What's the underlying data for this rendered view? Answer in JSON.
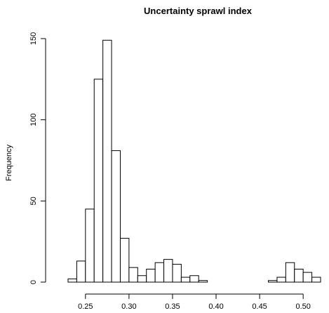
{
  "chart_data": {
    "type": "bar",
    "title": "Uncertainty sprawl index",
    "xlabel": "",
    "ylabel": "Frequency",
    "bin_width": 0.01,
    "bins": [
      {
        "start": 0.23,
        "end": 0.24,
        "value": 2
      },
      {
        "start": 0.24,
        "end": 0.25,
        "value": 13
      },
      {
        "start": 0.25,
        "end": 0.26,
        "value": 45
      },
      {
        "start": 0.26,
        "end": 0.27,
        "value": 125
      },
      {
        "start": 0.27,
        "end": 0.28,
        "value": 149
      },
      {
        "start": 0.28,
        "end": 0.29,
        "value": 81
      },
      {
        "start": 0.29,
        "end": 0.3,
        "value": 27
      },
      {
        "start": 0.3,
        "end": 0.31,
        "value": 9
      },
      {
        "start": 0.31,
        "end": 0.32,
        "value": 4
      },
      {
        "start": 0.32,
        "end": 0.33,
        "value": 8
      },
      {
        "start": 0.33,
        "end": 0.34,
        "value": 12
      },
      {
        "start": 0.34,
        "end": 0.35,
        "value": 14
      },
      {
        "start": 0.35,
        "end": 0.36,
        "value": 11
      },
      {
        "start": 0.36,
        "end": 0.37,
        "value": 3
      },
      {
        "start": 0.37,
        "end": 0.38,
        "value": 4
      },
      {
        "start": 0.38,
        "end": 0.39,
        "value": 1
      },
      {
        "start": 0.46,
        "end": 0.47,
        "value": 1
      },
      {
        "start": 0.47,
        "end": 0.48,
        "value": 3
      },
      {
        "start": 0.48,
        "end": 0.49,
        "value": 12
      },
      {
        "start": 0.49,
        "end": 0.5,
        "value": 8
      },
      {
        "start": 0.5,
        "end": 0.51,
        "value": 6
      },
      {
        "start": 0.51,
        "end": 0.52,
        "value": 3
      }
    ],
    "xlim": [
      0.23,
      0.52
    ],
    "ylim": [
      0,
      150
    ],
    "x_ticks": [
      0.25,
      0.3,
      0.35,
      0.4,
      0.45,
      0.5
    ],
    "x_tick_labels": [
      "0.25",
      "0.30",
      "0.35",
      "0.40",
      "0.45",
      "0.50"
    ],
    "y_ticks": [
      0,
      50,
      100,
      150
    ],
    "y_tick_labels": [
      "0",
      "50",
      "100",
      "150"
    ],
    "grid": false,
    "legend": "none"
  }
}
